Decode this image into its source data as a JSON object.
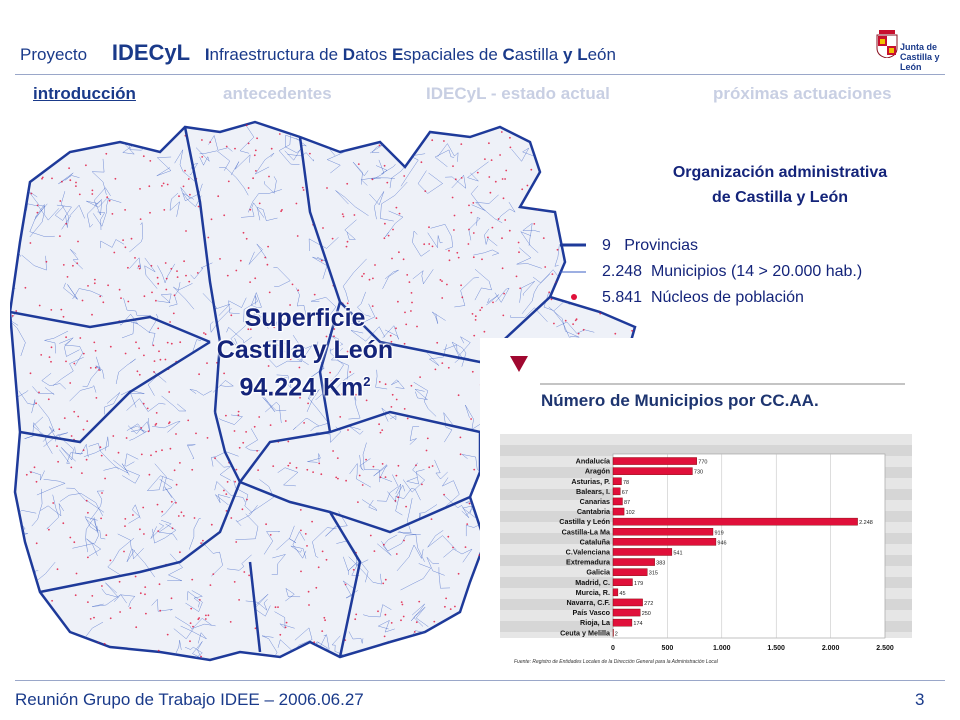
{
  "header": {
    "project_label": "Proyecto",
    "brand": "IDECyL",
    "subtitle_parts": [
      {
        "t": "I",
        "b": true
      },
      {
        "t": "nfraestructura de ",
        "b": false
      },
      {
        "t": "D",
        "b": true
      },
      {
        "t": "atos ",
        "b": false
      },
      {
        "t": "E",
        "b": true
      },
      {
        "t": "spaciales de ",
        "b": false
      },
      {
        "t": "C",
        "b": true
      },
      {
        "t": "astilla ",
        "b": false
      },
      {
        "t": "y",
        "b": true
      },
      {
        "t": " ",
        "b": false
      },
      {
        "t": "L",
        "b": true
      },
      {
        "t": "eón",
        "b": false
      }
    ],
    "logo_line1": "Junta de",
    "logo_line2": "Castilla y León"
  },
  "nav": [
    {
      "label": "introducción",
      "active": true
    },
    {
      "label": "antecedentes",
      "active": false
    },
    {
      "label": "IDECyL - estado actual",
      "active": false
    },
    {
      "label": "próximas actuaciones",
      "active": false
    }
  ],
  "map": {
    "label_line1": "Superficie",
    "label_line2": "Castilla y León",
    "label_line3": "94.224 Km",
    "label_sup": "2"
  },
  "organization": {
    "title_line1": "Organización administrativa",
    "title_line2": "de Castilla y León",
    "legend": [
      {
        "symbol": "thick-line",
        "count": "9",
        "text": "Provincias"
      },
      {
        "symbol": "thin-line",
        "count": "2.248",
        "text": "Municipios  (14 > 20.000 hab.)"
      },
      {
        "symbol": "dot",
        "count": "5.841",
        "text": "Núcleos de población"
      }
    ]
  },
  "chart_data": {
    "type": "bar",
    "orientation": "horizontal",
    "title": "Número de Municipios por CC.AA.",
    "categories": [
      "Andalucía",
      "Aragón",
      "Asturias, P.",
      "Balears, I.",
      "Canarias",
      "Cantabria",
      "Castilla y León",
      "Castilla-La Ma",
      "Cataluña",
      "C.Valenciana",
      "Extremadura",
      "Galicia",
      "Madrid, C.",
      "Murcia, R.",
      "Navarra, C.F.",
      "País Vasco",
      "Rioja, La",
      "Ceuta y Melilla"
    ],
    "values": [
      770,
      730,
      78,
      67,
      87,
      102,
      2248,
      919,
      946,
      541,
      383,
      315,
      179,
      45,
      272,
      250,
      174,
      2
    ],
    "value_labels": [
      "770",
      "730",
      "78",
      "67",
      "87",
      "102",
      "2.248",
      "919",
      "946",
      "541",
      "383",
      "315",
      "179",
      "45",
      "272",
      "250",
      "174",
      "2"
    ],
    "x_ticks": [
      0,
      500,
      1000,
      1500,
      2000,
      2500
    ],
    "x_tick_labels": [
      "0",
      "500",
      "1.000",
      "1.500",
      "2.000",
      "2.500"
    ],
    "xlim": [
      0,
      2500
    ],
    "source": "Fuente: Registro de Entidades Locales de la Dirección General para la Administración Local",
    "bar_color": "#e0103a",
    "grid": true
  },
  "footer": {
    "left": "Reunión Grupo de Trabajo IDEE – 2006.06.27",
    "page": "3"
  },
  "colors": {
    "primary": "#1a3a8a",
    "nav_inactive": "#c8cfe3",
    "map_boundary": "#3b5fc4",
    "map_dots": "#e0103a"
  }
}
